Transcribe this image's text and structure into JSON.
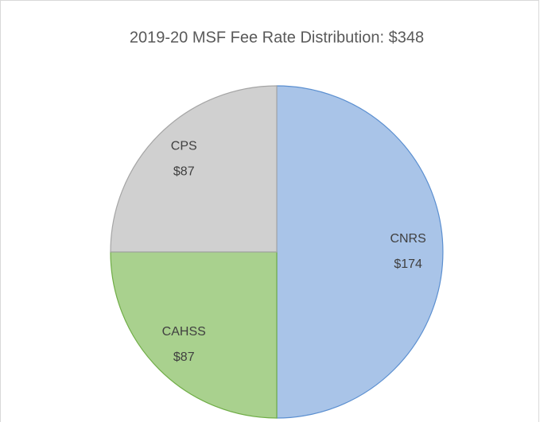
{
  "chart_data": {
    "type": "pie",
    "title": "2019-20 MSF Fee Rate Distribution: $348",
    "categories": [
      "CNRS",
      "CAHSS",
      "CPS"
    ],
    "values": [
      174,
      87,
      87
    ],
    "value_labels": [
      "$174",
      "$87",
      "$87"
    ],
    "colors": [
      "#a9c4e8",
      "#a9d18e",
      "#d0d0d0"
    ],
    "edge_colors": [
      "#5b8fd0",
      "#70ad47",
      "#a5a5a5"
    ]
  }
}
